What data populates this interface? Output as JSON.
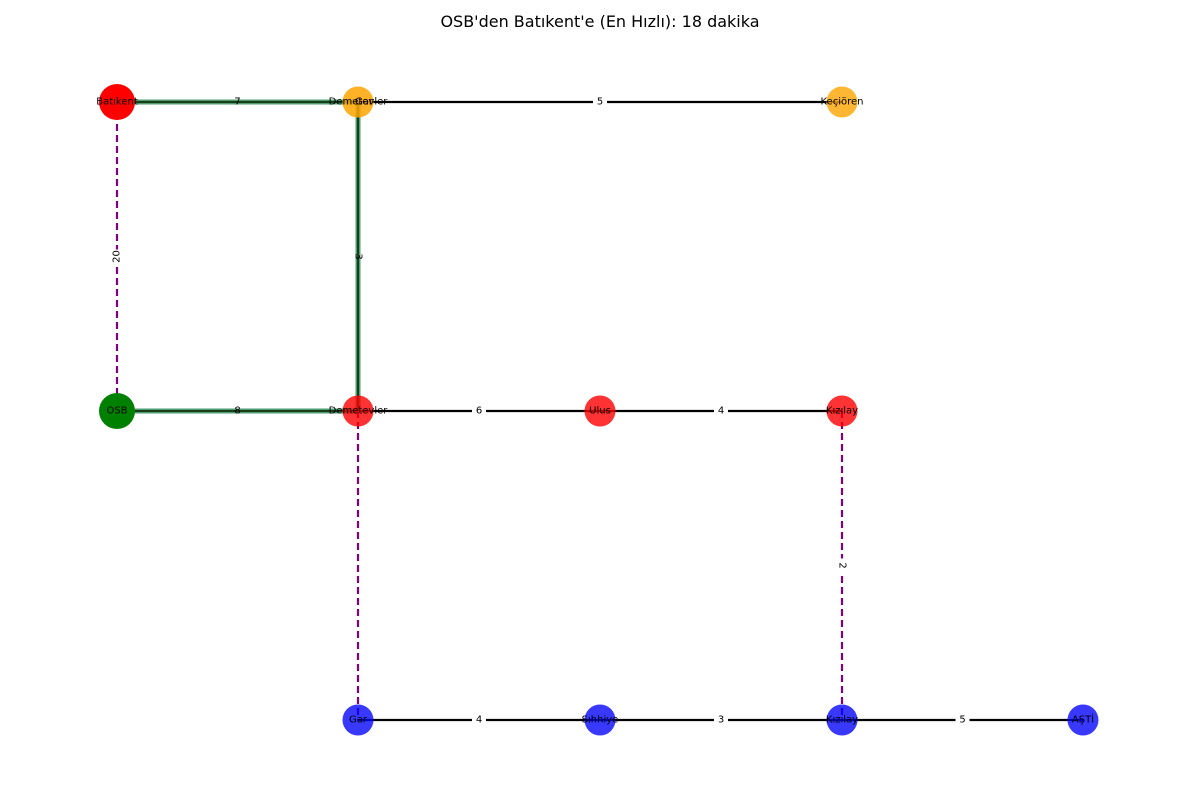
{
  "title": "OSB'den Batıkent'e (En Hızlı): 18 dakika",
  "colors": {
    "red_line": "#ff0000",
    "orange_line": "#ffa500",
    "blue_line": "#0000ff",
    "green_start": "#008000",
    "edge": "#000000",
    "transfer": "#800080",
    "path": "#2e8b57"
  },
  "nodes": [
    {
      "id": "batikent",
      "label": "Batıkent",
      "color": "#ff0000",
      "alpha": 1.0,
      "emph": true
    },
    {
      "id": "demetevler_top",
      "label": "Demetevler",
      "color": "#ffa500",
      "alpha": 0.85
    },
    {
      "id": "gar_overlap_label",
      "label": "Gar",
      "color": "#ffa500",
      "alpha": 0.0
    },
    {
      "id": "kecioren",
      "label": "Keçiören",
      "color": "#ffa500",
      "alpha": 0.8
    },
    {
      "id": "osb",
      "label": "OSB",
      "color": "#008000",
      "alpha": 1.0,
      "emph": true
    },
    {
      "id": "demetevler_mid",
      "label": "Demetevler",
      "color": "#ff0000",
      "alpha": 0.8
    },
    {
      "id": "ulus",
      "label": "Ulus",
      "color": "#ff0000",
      "alpha": 0.8
    },
    {
      "id": "kizilay_red",
      "label": "Kızılay",
      "color": "#ff0000",
      "alpha": 0.8
    },
    {
      "id": "gar",
      "label": "Gar",
      "color": "#0000ff",
      "alpha": 0.78
    },
    {
      "id": "sihhiye",
      "label": "Sıhhiye",
      "color": "#0000ff",
      "alpha": 0.78
    },
    {
      "id": "kizilay_blue",
      "label": "Kızılay",
      "color": "#0000ff",
      "alpha": 0.78
    },
    {
      "id": "asti",
      "label": "AŞTİ",
      "color": "#0000ff",
      "alpha": 0.78
    }
  ],
  "edges": [
    {
      "from": "batikent",
      "to": "demetevler_top",
      "weight": "7",
      "style": "path"
    },
    {
      "from": "demetevler_top",
      "to": "kecioren",
      "weight": "5",
      "style": "solid"
    },
    {
      "from": "batikent",
      "to": "osb",
      "weight": "20",
      "style": "transfer"
    },
    {
      "from": "demetevler_top",
      "to": "demetevler_mid",
      "weight": "3",
      "style": "path"
    },
    {
      "from": "osb",
      "to": "demetevler_mid",
      "weight": "8",
      "style": "path"
    },
    {
      "from": "demetevler_mid",
      "to": "ulus",
      "weight": "6",
      "style": "solid"
    },
    {
      "from": "ulus",
      "to": "kizilay_red",
      "weight": "4",
      "style": "solid"
    },
    {
      "from": "demetevler_mid",
      "to": "gar",
      "weight": "",
      "style": "transfer"
    },
    {
      "from": "kizilay_red",
      "to": "kizilay_blue",
      "weight": "2",
      "style": "transfer"
    },
    {
      "from": "gar",
      "to": "sihhiye",
      "weight": "4",
      "style": "solid"
    },
    {
      "from": "sihhiye",
      "to": "kizilay_blue",
      "weight": "3",
      "style": "solid"
    },
    {
      "from": "kizilay_blue",
      "to": "asti",
      "weight": "5",
      "style": "solid"
    }
  ]
}
